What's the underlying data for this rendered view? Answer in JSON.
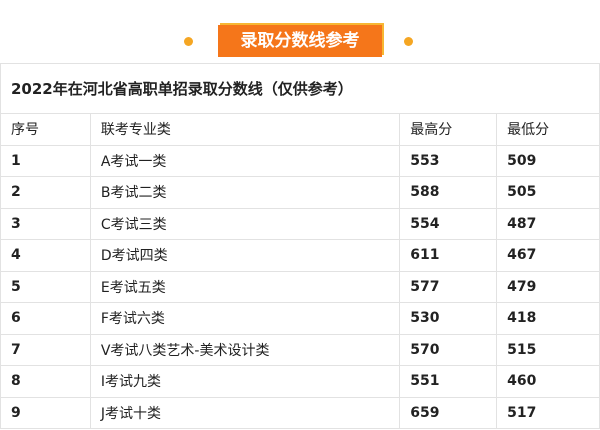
{
  "banner": {
    "label": "录取分数线参考",
    "color": "#f5761a"
  },
  "table": {
    "title": "2022年在河北省高职单招录取分数线（仅供参考）",
    "headers": [
      "序号",
      "联考专业类",
      "最高分",
      "最低分"
    ],
    "rows": [
      [
        "1",
        "A考试一类",
        "553",
        "509"
      ],
      [
        "2",
        "B考试二类",
        "588",
        "505"
      ],
      [
        "3",
        "C考试三类",
        "554",
        "487"
      ],
      [
        "4",
        "D考试四类",
        "611",
        "467"
      ],
      [
        "5",
        "E考试五类",
        "577",
        "479"
      ],
      [
        "6",
        "F考试六类",
        "530",
        "418"
      ],
      [
        "7",
        "V考试八类艺术-美术设计类",
        "570",
        "515"
      ],
      [
        "8",
        "I考试九类",
        "551",
        "460"
      ],
      [
        "9",
        "J考试十类",
        "659",
        "517"
      ]
    ]
  }
}
